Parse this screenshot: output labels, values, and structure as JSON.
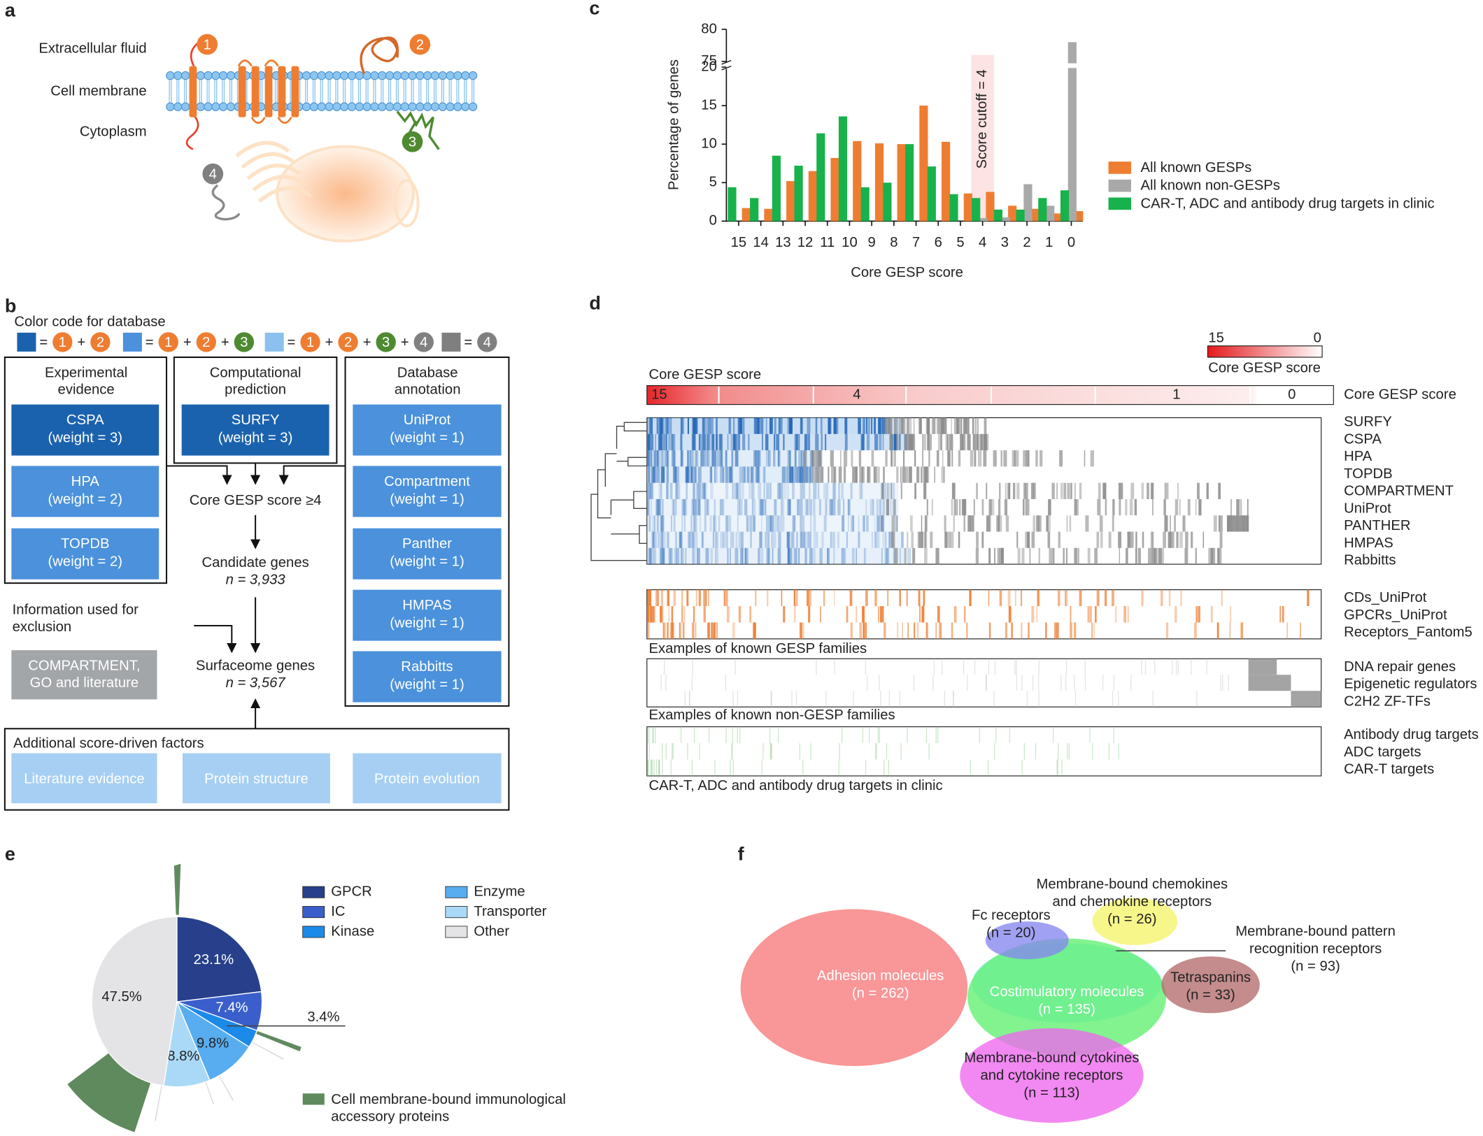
{
  "chart_data": [
    {
      "type": "bar",
      "panel_label": "c",
      "x_label": "Core GESP score",
      "y_label": "Percentage of genes",
      "categories": [
        "15",
        "14",
        "13",
        "12",
        "11",
        "10",
        "9",
        "8",
        "7",
        "6",
        "5",
        "4",
        "3",
        "2",
        "1",
        "0"
      ],
      "series": [
        {
          "name": "All known GESPs",
          "color": "#ee7d31",
          "values": [
            1.7,
            1.6,
            5.2,
            6.5,
            8.2,
            10.4,
            10.1,
            10.0,
            15.0,
            10.3,
            3.6,
            3.8,
            2.0,
            1.6,
            1.0,
            1.3
          ]
        },
        {
          "name": "All known non-GESPs",
          "color": "#a9a9a9",
          "values": [
            0,
            0,
            0,
            0,
            0,
            0,
            0,
            0,
            0,
            0,
            0,
            0.4,
            0.5,
            4.8,
            2.0,
            78
          ]
        },
        {
          "name": "CAR-T, ADC and antibody drug targets in clinic",
          "color": "#17b24b",
          "values": [
            4.4,
            3.0,
            8.5,
            7.2,
            11.4,
            13.6,
            4.4,
            5.0,
            10.0,
            7.1,
            3.5,
            3.0,
            1.5,
            1.5,
            3.0,
            4.0
          ]
        }
      ],
      "ylim": [
        0,
        80
      ],
      "yticks": [
        0,
        5,
        10,
        15,
        20,
        75,
        80
      ],
      "axis_break": [
        20,
        75
      ],
      "grid": false,
      "cutoff": {
        "text": "Score cutoff = 4",
        "at": "4"
      }
    },
    {
      "type": "pie",
      "panel_label": "e",
      "categories": [
        "GPCR",
        "IC",
        "Kinase",
        "Enzyme",
        "Transporter",
        "Other"
      ],
      "values": [
        23.1,
        7.4,
        3.4,
        9.8,
        8.8,
        47.5
      ],
      "value_labels": [
        "23.1%",
        "7.4%",
        "3.4%",
        "9.8%",
        "8.8%",
        "47.5%"
      ],
      "colors": [
        "#28408b",
        "#3a5fcc",
        "#1c8ae8",
        "#57adf0",
        "#aad9f7",
        "#e4e4e6"
      ],
      "accessory_legend": {
        "lines": [
          "Cell membrane-bound immunological",
          "accessory proteins"
        ],
        "color": "#5f8a5e"
      }
    }
  ],
  "panels": {
    "a": {
      "label": "a",
      "regions": [
        "Extracellular fluid",
        "Cell membrane",
        "Cytoplasm"
      ],
      "markers": [
        "1",
        "2",
        "3",
        "4"
      ]
    },
    "b": {
      "label": "b",
      "color_code_title": "Color code for database",
      "equals": "=",
      "plus": "+",
      "color_code": [
        [
          "1",
          "2"
        ],
        [
          "1",
          "2",
          "3"
        ],
        [
          "1",
          "2",
          "3",
          "4"
        ],
        [
          "4"
        ]
      ],
      "groups": [
        {
          "title": [
            "Experimental",
            "evidence"
          ],
          "items": [
            [
              "CSPA",
              "(weight = 3)"
            ],
            [
              "HPA",
              "(weight = 2)"
            ],
            [
              "TOPDB",
              "(weight = 2)"
            ]
          ]
        },
        {
          "title": [
            "Computational",
            "prediction"
          ],
          "items": [
            [
              "SURFY",
              "(weight = 3)"
            ]
          ]
        },
        {
          "title": [
            "Database",
            "annotation"
          ],
          "items": [
            [
              "UniProt",
              "(weight = 1)"
            ],
            [
              "Compartment",
              "(weight = 1)"
            ],
            [
              "Panther",
              "(weight = 1)"
            ],
            [
              "HMPAS",
              "(weight = 1)"
            ],
            [
              "Rabbitts",
              "(weight = 1)"
            ]
          ]
        }
      ],
      "score_step": "Core GESP score ≥4",
      "candidate": [
        "Candidate genes",
        "n = 3,933"
      ],
      "exclusion_title": [
        "Information used for",
        "exclusion"
      ],
      "exclusion_box": [
        "COMPARTMENT,",
        "GO and literature"
      ],
      "surfaceome": [
        "Surfaceome genes",
        "n = 3,567"
      ],
      "factors_title": "Additional score-driven factors",
      "factors": [
        "Literature evidence",
        "Protein structure",
        "Protein evolution"
      ]
    },
    "d": {
      "label": "d",
      "scale": {
        "max": "15",
        "min": "0",
        "title": "Core GESP score"
      },
      "score_bar": {
        "title": "Core GESP score",
        "ticks": [
          "15",
          "4",
          "1",
          "0"
        ],
        "row_label": "Core GESP score"
      },
      "blocks": [
        {
          "rows": [
            "SURFY",
            "CSPA",
            "HPA",
            "TOPDB",
            "COMPARTMENT",
            "UniProt",
            "PANTHER",
            "HMPAS",
            "Rabbitts"
          ]
        },
        {
          "rows": [
            "CDs_UniProt",
            "GPCRs_UniProt",
            "Receptors_Fantom5"
          ],
          "caption": "Examples of known GESP families"
        },
        {
          "rows": [
            "DNA repair genes",
            "Epigenetic regulators",
            "C2H2 ZF-TFs"
          ],
          "caption": "Examples of known non-GESP families"
        },
        {
          "rows": [
            "Antibody drug targets",
            "ADC targets",
            "CAR-T targets"
          ],
          "caption": "CAR-T, ADC and antibody drug targets in clinic"
        }
      ]
    },
    "f": {
      "label": "f",
      "sets": [
        {
          "lines": [
            "Adhesion molecules",
            "(n = 262)"
          ]
        },
        {
          "lines": [
            "Membrane-bound pattern",
            "recognition receptors",
            "(n = 93)"
          ]
        },
        {
          "lines": [
            "Costimulatory molecules",
            "(n = 135)"
          ]
        },
        {
          "lines": [
            "Fc receptors",
            "(n = 20)"
          ]
        },
        {
          "lines": [
            "Membrane-bound chemokines",
            "and chemokine receptors",
            "(n = 26)"
          ]
        },
        {
          "lines": [
            "Tetraspanins",
            "(n = 33)"
          ]
        },
        {
          "lines": [
            "Membrane-bound cytokines",
            "and cytokine receptors",
            "(n = 113)"
          ]
        }
      ]
    }
  }
}
